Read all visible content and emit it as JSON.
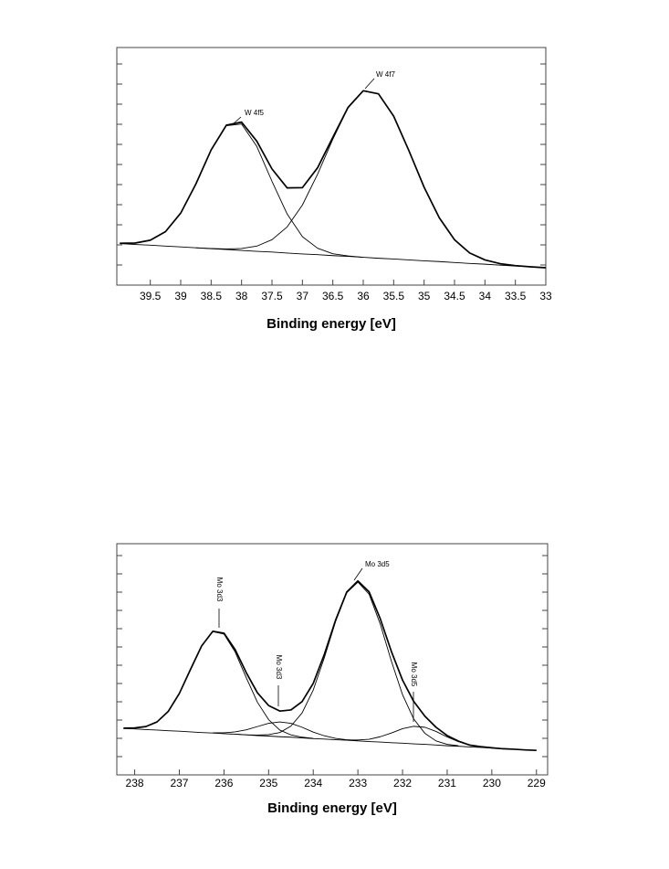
{
  "chart_data": [
    {
      "type": "line",
      "xlabel": "Binding energy [eV]",
      "xlim": [
        40.05,
        33
      ],
      "ylim": [
        0,
        100
      ],
      "xticks": [
        39.5,
        39,
        38.5,
        38,
        37.5,
        37,
        36.5,
        36,
        35.5,
        35,
        34.5,
        34,
        33.5,
        33
      ],
      "grid": false,
      "annotations": [
        "W 4f5",
        "W 4f7"
      ],
      "x": [
        40.0,
        39.75,
        39.5,
        39.25,
        39.0,
        38.75,
        38.5,
        38.25,
        38.0,
        37.75,
        37.5,
        37.25,
        37.0,
        36.75,
        36.5,
        36.25,
        36.0,
        35.75,
        35.5,
        35.25,
        35.0,
        34.75,
        34.5,
        34.25,
        34.0,
        33.75,
        33.5,
        33.25,
        33.0
      ],
      "series": [
        {
          "color": "#000000",
          "values": [
            17.5,
            17.1,
            16.8,
            16.4,
            16.1,
            15.7,
            15.3,
            15.0,
            14.6,
            14.2,
            13.9,
            13.5,
            13.1,
            12.8,
            12.4,
            12.1,
            11.7,
            11.3,
            11.0,
            10.6,
            10.2,
            9.9,
            9.5,
            9.1,
            8.8,
            8.4,
            8.0,
            7.7,
            7.3
          ]
        },
        {
          "color": "#000000",
          "values": [
            17.6,
            17.7,
            18.9,
            22.5,
            30.3,
            42.6,
            56.8,
            67.1,
            67.8,
            58.4,
            43.7,
            29.9,
            20.4,
            15.5,
            13.2,
            12.3,
            11.7,
            null,
            null,
            null,
            null,
            null,
            null,
            null,
            null,
            null,
            null,
            null,
            null
          ]
        },
        {
          "color": "#000000",
          "values": [
            null,
            null,
            null,
            null,
            null,
            15.7,
            15.4,
            15.2,
            15.4,
            16.4,
            19.1,
            24.5,
            33.7,
            46.7,
            61.4,
            74.6,
            81.8,
            80.5,
            71.1,
            56.6,
            41.2,
            28.3,
            19.1,
            13.5,
            10.6,
            9.0,
            8.2,
            7.7,
            7.3
          ]
        },
        {
          "color": "#000000",
          "values": [
            17.6,
            17.7,
            18.9,
            22.5,
            30.3,
            42.6,
            56.9,
            67.3,
            68.6,
            60.6,
            48.9,
            40.9,
            41.0,
            49.4,
            62.2,
            74.8,
            81.8,
            80.5,
            71.1,
            56.6,
            41.2,
            28.3,
            19.1,
            13.5,
            10.6,
            9.0,
            8.2,
            7.7,
            7.3
          ]
        }
      ]
    },
    {
      "type": "line",
      "xlabel": "Binding energy [eV]",
      "xlim": [
        238.4,
        228.75
      ],
      "ylim": [
        0,
        100
      ],
      "xticks": [
        238,
        237,
        236,
        235,
        234,
        233,
        232,
        231,
        230,
        229
      ],
      "grid": false,
      "annotations": [
        "Mo 3d3",
        "Mo 3d3",
        "Mo 3d5",
        "Mo 3d5"
      ],
      "x": [
        238.25,
        238.0,
        237.75,
        237.5,
        237.25,
        237.0,
        236.75,
        236.5,
        236.25,
        236.0,
        235.75,
        235.5,
        235.25,
        235.0,
        234.75,
        234.5,
        234.25,
        234.0,
        233.75,
        233.5,
        233.25,
        233.0,
        232.75,
        232.5,
        232.25,
        232.0,
        231.75,
        231.5,
        231.25,
        231.0,
        230.75,
        230.5,
        230.25,
        230.0,
        229.75,
        229.5,
        229.25,
        229.0
      ],
      "series": [
        {
          "color": "#000000",
          "values": [
            20.1,
            19.9,
            19.6,
            19.4,
            19.1,
            18.9,
            18.6,
            18.3,
            18.1,
            17.8,
            17.6,
            17.3,
            17.0,
            16.8,
            16.5,
            16.3,
            16.0,
            15.7,
            15.5,
            15.2,
            15.0,
            14.7,
            14.4,
            14.2,
            13.9,
            13.7,
            13.4,
            13.2,
            12.9,
            12.6,
            12.4,
            12.1,
            11.9,
            11.6,
            11.3,
            11.1,
            10.8,
            10.6
          ]
        },
        {
          "color": "#000000",
          "values": [
            20.2,
            20.3,
            20.9,
            22.9,
            27.4,
            35.2,
            45.6,
            55.8,
            62.0,
            60.9,
            53.2,
            42.0,
            31.4,
            23.9,
            19.4,
            17.3,
            16.3,
            15.8,
            null,
            null,
            null,
            null,
            null,
            null,
            null,
            null,
            null,
            null,
            null,
            null,
            null,
            null,
            null,
            null,
            null,
            null,
            null,
            null
          ]
        },
        {
          "color": "#000000",
          "values": [
            null,
            null,
            null,
            null,
            null,
            null,
            null,
            null,
            null,
            null,
            17.6,
            17.3,
            17.2,
            17.4,
            18.3,
            21.1,
            26.8,
            36.7,
            50.8,
            66.3,
            78.8,
            83.4,
            78.2,
            65.3,
            49.2,
            34.7,
            24.2,
            18.0,
            14.7,
            13.2,
            12.6,
            null,
            null,
            null,
            null,
            null,
            null,
            null
          ]
        },
        {
          "color": "#000000",
          "values": [
            null,
            null,
            null,
            null,
            null,
            null,
            null,
            null,
            18.2,
            18.2,
            18.6,
            19.5,
            20.9,
            22.3,
            22.9,
            22.3,
            20.6,
            18.5,
            16.9,
            15.8,
            15.2,
            14.8,
            null,
            null,
            null,
            null,
            null,
            null,
            null,
            null,
            null,
            null,
            null,
            null,
            null,
            null,
            null,
            null
          ]
        },
        {
          "color": "#000000",
          "values": [
            null,
            null,
            null,
            null,
            null,
            null,
            null,
            null,
            null,
            null,
            null,
            null,
            null,
            null,
            null,
            null,
            null,
            null,
            null,
            null,
            15.1,
            15.1,
            15.4,
            16.5,
            18.1,
            20.0,
            21.0,
            20.6,
            18.8,
            16.4,
            14.4,
            12.9,
            12.2,
            11.7,
            null,
            null,
            null,
            null
          ]
        },
        {
          "color": "#000000",
          "values": [
            20.2,
            20.3,
            20.9,
            22.9,
            27.4,
            35.2,
            45.6,
            55.8,
            62.1,
            61.3,
            54.2,
            44.2,
            35.5,
            30.0,
            27.6,
            28.1,
            31.7,
            39.6,
            52.2,
            66.9,
            79.1,
            83.9,
            79.2,
            67.6,
            53.4,
            41.0,
            31.8,
            25.4,
            20.6,
            17.0,
            14.6,
            12.9,
            12.2,
            11.7,
            11.3,
            11.1,
            10.8,
            10.6
          ]
        }
      ]
    }
  ]
}
